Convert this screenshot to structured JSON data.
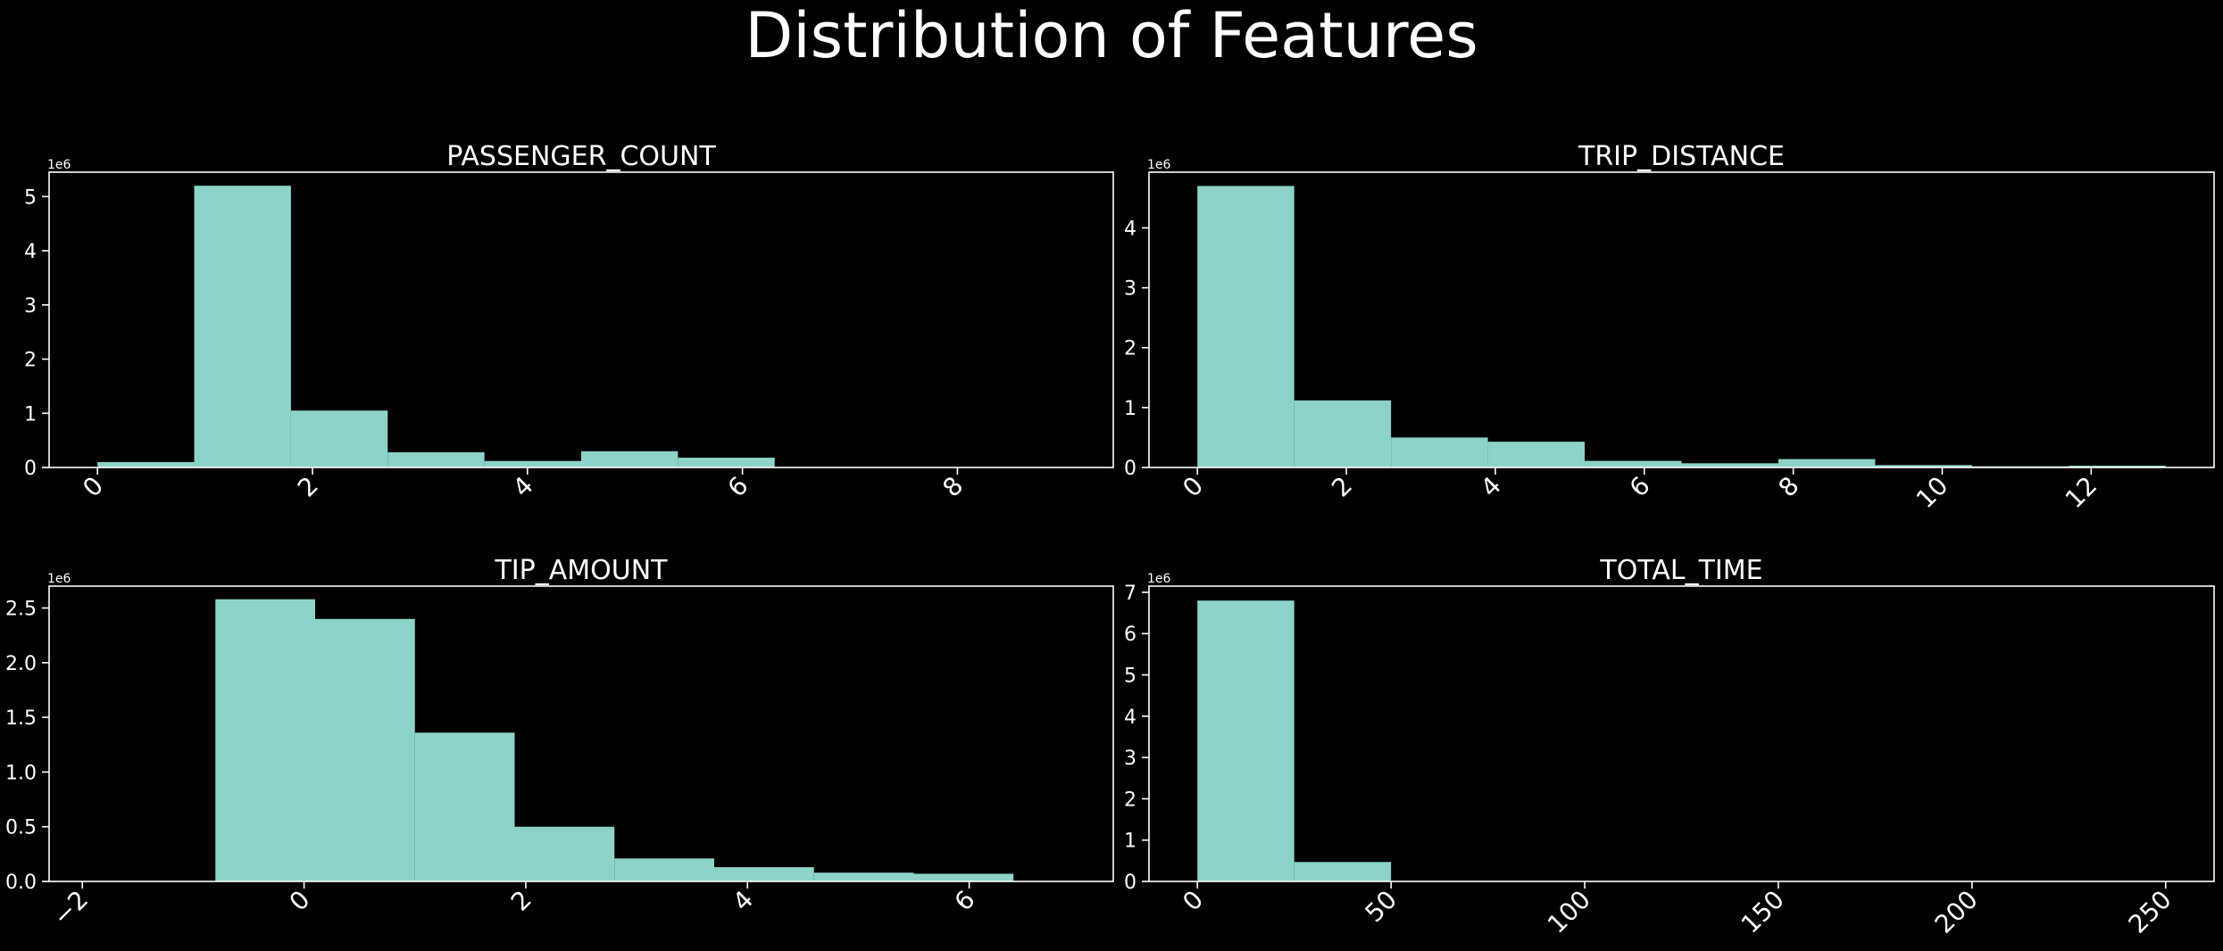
{
  "figure": {
    "title": "Distribution of Features",
    "background": "#000000",
    "bar_color": "#8dd3c7",
    "axis_color": "#ffffff"
  },
  "chart_data": [
    {
      "type": "bar",
      "title": "PASSENGER_COUNT",
      "xlabel": "",
      "ylabel": "",
      "offset_label": "1e6",
      "bin_edges": [
        0,
        0.9,
        1.8,
        2.7,
        3.6,
        4.5,
        5.4,
        6.3,
        7.2,
        8.1,
        9
      ],
      "values": [
        0.1,
        5.2,
        1.05,
        0.28,
        0.12,
        0.3,
        0.18,
        0,
        0,
        0
      ],
      "xlim": [
        -0.45,
        9.45
      ],
      "ylim": [
        0,
        5.45
      ],
      "xticks": [
        0,
        2,
        4,
        6,
        8
      ],
      "xtick_labels": [
        "0",
        "2",
        "4",
        "6",
        "8"
      ],
      "yticks": [
        0,
        1,
        2,
        3,
        4,
        5
      ],
      "ytick_labels": [
        "0",
        "1",
        "2",
        "3",
        "4",
        "5"
      ]
    },
    {
      "type": "bar",
      "title": "TRIP_DISTANCE",
      "xlabel": "",
      "ylabel": "",
      "offset_label": "1e6",
      "bin_edges": [
        0,
        1.3,
        2.6,
        3.9,
        5.2,
        6.5,
        7.8,
        9.1,
        10.4,
        11.7,
        13
      ],
      "values": [
        4.7,
        1.12,
        0.5,
        0.43,
        0.11,
        0.07,
        0.14,
        0.04,
        0.02,
        0.03
      ],
      "xlim": [
        -0.65,
        13.65
      ],
      "ylim": [
        0,
        4.93
      ],
      "xticks": [
        0,
        2,
        4,
        6,
        8,
        10,
        12
      ],
      "xtick_labels": [
        "0",
        "2",
        "4",
        "6",
        "8",
        "10",
        "12"
      ],
      "yticks": [
        0,
        1,
        2,
        3,
        4
      ],
      "ytick_labels": [
        "0",
        "1",
        "2",
        "3",
        "4"
      ]
    },
    {
      "type": "bar",
      "title": "TIP_AMOUNT",
      "xlabel": "",
      "ylabel": "",
      "offset_label": "1e6",
      "bin_edges": [
        -2.6,
        -1.7,
        -0.8,
        0.1,
        1.0,
        1.9,
        2.8,
        3.7,
        4.6,
        5.5,
        6.4
      ],
      "bin_edges_note": "",
      "values": [
        0,
        0,
        2.58,
        2.4,
        1.36,
        0.5,
        0.21,
        0.13,
        0.08,
        0.07
      ],
      "xlim": [
        -2.3,
        7.3
      ],
      "ylim": [
        0,
        2.7
      ],
      "xticks": [
        -2,
        0,
        2,
        4,
        6
      ],
      "xtick_labels": [
        "−2",
        "0",
        "2",
        "4",
        "6"
      ],
      "yticks": [
        0,
        0.5,
        1.0,
        1.5,
        2.0,
        2.5
      ],
      "ytick_labels": [
        "0.0",
        "0.5",
        "1.0",
        "1.5",
        "2.0",
        "2.5"
      ]
    },
    {
      "type": "bar",
      "title": "TOTAL_TIME",
      "xlabel": "",
      "ylabel": "",
      "offset_label": "1e6",
      "bin_edges": [
        0,
        25,
        50,
        75,
        100,
        125,
        150,
        175,
        200,
        225,
        250
      ],
      "values": [
        6.8,
        0.47,
        0,
        0,
        0,
        0,
        0,
        0,
        0,
        0
      ],
      "xlim": [
        -12.5,
        262.5
      ],
      "ylim": [
        0,
        7.15
      ],
      "xticks": [
        0,
        50,
        100,
        150,
        200,
        250
      ],
      "xtick_labels": [
        "0",
        "50",
        "100",
        "150",
        "200",
        "250"
      ],
      "yticks": [
        0,
        1,
        2,
        3,
        4,
        5,
        6,
        7
      ],
      "ytick_labels": [
        "0",
        "1",
        "2",
        "3",
        "4",
        "5",
        "6",
        "7"
      ]
    }
  ]
}
